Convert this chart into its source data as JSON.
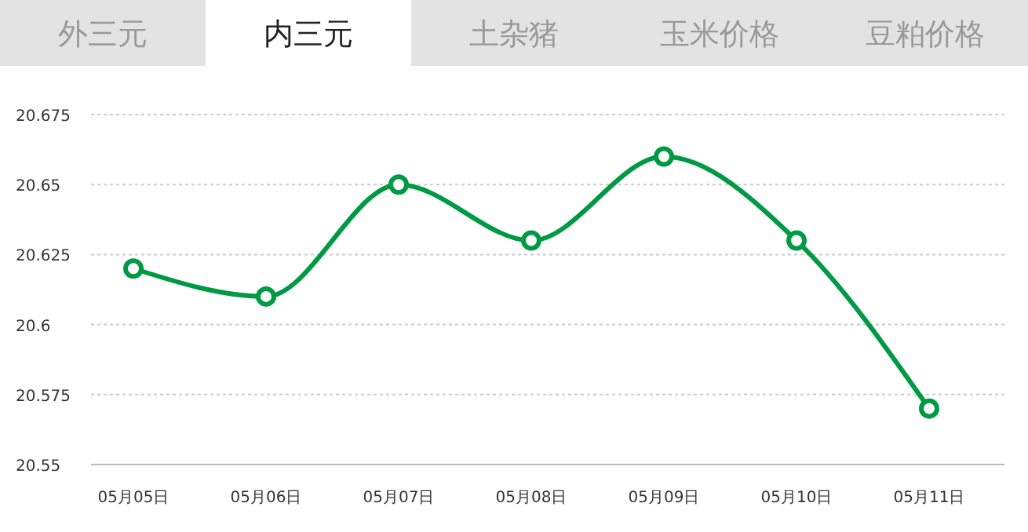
{
  "chart_data": {
    "type": "line",
    "annotations": [
      "外三元",
      "内三元",
      "土杂猪",
      "玉米价格",
      "豆粕价格"
    ],
    "categories": [
      "05月05日",
      "05月06日",
      "05月07日",
      "05月08日",
      "05月09日",
      "05月10日",
      "05月11日"
    ],
    "series": [
      {
        "color": "#009944",
        "values": [
          20.62,
          20.61,
          20.65,
          20.63,
          20.66,
          20.63,
          20.57
        ]
      }
    ],
    "ylim": [
      20.55,
      20.675
    ],
    "yticks": [
      20.55,
      20.575,
      20.6,
      20.625,
      20.65,
      20.675
    ],
    "grid": "y",
    "marker": "circle",
    "line_style": "solid"
  }
}
